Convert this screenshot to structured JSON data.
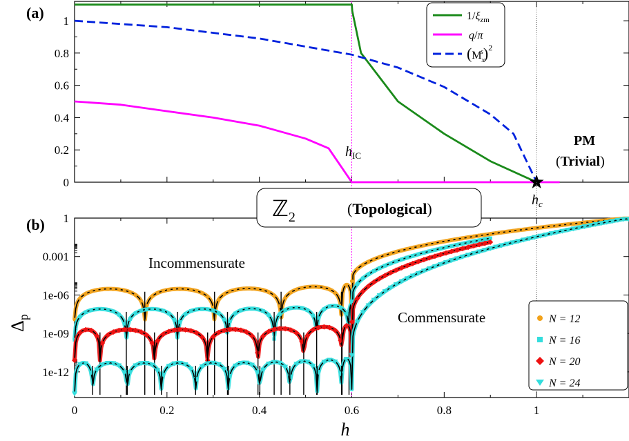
{
  "colors": {
    "green": "#1a8a1a",
    "magenta": "#ff00ff",
    "blue": "#0022dd",
    "orange": "#f2a21a",
    "cyan": "#33dddd",
    "red": "#ee1111",
    "black": "#000000"
  },
  "chart_data": [
    {
      "panel": "(a)",
      "type": "line",
      "xlim": [
        0,
        1.2
      ],
      "ylim": [
        0,
        1.12
      ],
      "yticks": [
        "0",
        "0.2",
        "0.4",
        "0.6",
        "0.8",
        "1"
      ],
      "x_critical": {
        "h_IC": 0.6,
        "h_c": 1.0
      },
      "series": [
        {
          "name": "1/ξ_zm",
          "color": "green",
          "style": "solid",
          "points": [
            [
              0,
              1.1
            ],
            [
              0.6,
              1.1
            ],
            [
              0.601,
              1.06
            ],
            [
              0.62,
              0.8
            ],
            [
              0.7,
              0.5
            ],
            [
              0.8,
              0.3
            ],
            [
              0.9,
              0.13
            ],
            [
              1.0,
              0.0
            ]
          ]
        },
        {
          "name": "q/π",
          "color": "magenta",
          "style": "solid",
          "points": [
            [
              0,
              0.5
            ],
            [
              0.1,
              0.48
            ],
            [
              0.2,
              0.44
            ],
            [
              0.3,
              0.4
            ],
            [
              0.4,
              0.35
            ],
            [
              0.5,
              0.27
            ],
            [
              0.55,
              0.21
            ],
            [
              0.6,
              0.0
            ],
            [
              1.05,
              0.0
            ]
          ]
        },
        {
          "name": "(M_x^s)^2",
          "color": "blue",
          "style": "dashed",
          "points": [
            [
              0,
              1.0
            ],
            [
              0.2,
              0.96
            ],
            [
              0.4,
              0.89
            ],
            [
              0.6,
              0.79
            ],
            [
              0.7,
              0.71
            ],
            [
              0.8,
              0.59
            ],
            [
              0.9,
              0.42
            ],
            [
              0.95,
              0.3
            ],
            [
              1.0,
              0.0
            ]
          ]
        }
      ],
      "annotations": {
        "h_IC": "h",
        "h_IC_sub": "IC",
        "h_c": "h",
        "h_c_sub": "c",
        "pm_line1": "PM",
        "pm_line2_open": "(",
        "pm_line2_bold": "Trivial",
        "pm_line2_close": ")"
      }
    },
    {
      "panel": "(b)",
      "type": "line",
      "yscale": "log",
      "xlim": [
        0,
        1.2
      ],
      "ylim": [
        1e-14,
        1
      ],
      "xticks": [
        "0",
        "0.2",
        "0.4",
        "0.6",
        "0.8",
        "1"
      ],
      "yticks": [
        "1e-12",
        "1e-09",
        "1e-06",
        "0.001",
        "1"
      ],
      "xlabel": "h",
      "ylabel": "Δ",
      "ylabel_sub": "p",
      "series": [
        {
          "name": "N = 12",
          "color": "orange",
          "marker": "circle",
          "base": 3e-06,
          "dip_positions": [
            0.152,
            0.303,
            0.447,
            0.578
          ]
        },
        {
          "name": "N = 16",
          "color": "cyan",
          "marker": "square",
          "base": 8e-08,
          "dip_positions": [
            0.112,
            0.223,
            0.331,
            0.432,
            0.524,
            0.594
          ]
        },
        {
          "name": "N = 20",
          "color": "red",
          "marker": "diamond",
          "base": 2e-09,
          "dip_positions": [
            0.055,
            0.173,
            0.288,
            0.397,
            0.496,
            0.579
          ]
        },
        {
          "name": "N = 24",
          "color": "cyan",
          "marker": "triangle-down",
          "base": 5e-12,
          "dip_positions": [
            0.039,
            0.114,
            0.188,
            0.262,
            0.333,
            0.401,
            0.466,
            0.525,
            0.578
          ]
        }
      ],
      "legend": [
        "N = 12",
        "N = 16",
        "N = 20",
        "N = 24"
      ],
      "legend_n": "N",
      "annotations": {
        "incommensurate": "Incommensurate",
        "commensurate": "Commensurate",
        "z2": "ℤ",
        "z2_sub": "2",
        "topo_open": "(",
        "topo_bold": "Topological",
        "topo_close": ")"
      }
    }
  ]
}
